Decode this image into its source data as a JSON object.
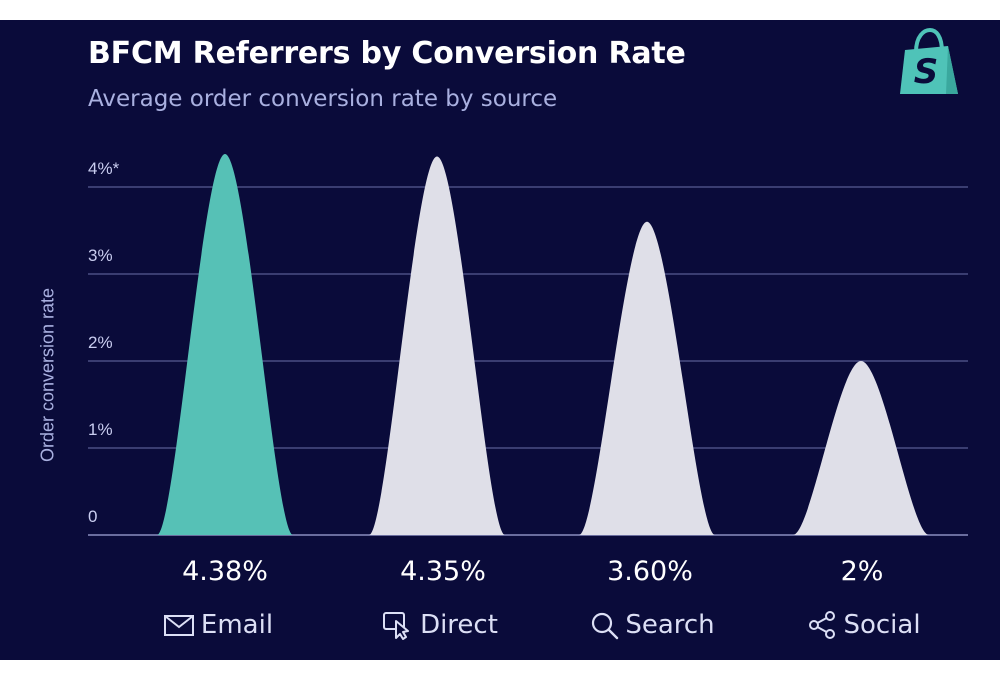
{
  "title": "BFCM Referrers by Conversion Rate",
  "subtitle": "Average order conversion rate by source",
  "colors": {
    "background": "#0a0b3a",
    "highlight": "#56c1b6",
    "default": "#dfdfe8",
    "grid": "#6b6fa8",
    "logo": "#4fc3b8"
  },
  "icons": [
    "shopify-logo-icon",
    "envelope-icon",
    "cursor-click-icon",
    "magnifier-icon",
    "share-icon"
  ],
  "chart_data": {
    "type": "area",
    "title": "BFCM Referrers by Conversion Rate",
    "subtitle": "Average order conversion rate by source",
    "ylabel": "Order conversion rate",
    "xlabel": "",
    "ylim": [
      0,
      4.5
    ],
    "yticks": [
      0,
      1,
      2,
      3,
      4
    ],
    "ytick_labels": [
      "0",
      "1%",
      "2%",
      "3%",
      "4%*"
    ],
    "grid": true,
    "categories": [
      "Email",
      "Direct",
      "Search",
      "Social"
    ],
    "values": [
      4.38,
      4.35,
      3.6,
      2.0
    ],
    "value_labels": [
      "4.38%",
      "4.35%",
      "3.60%",
      "2%"
    ],
    "highlight": "Email"
  }
}
